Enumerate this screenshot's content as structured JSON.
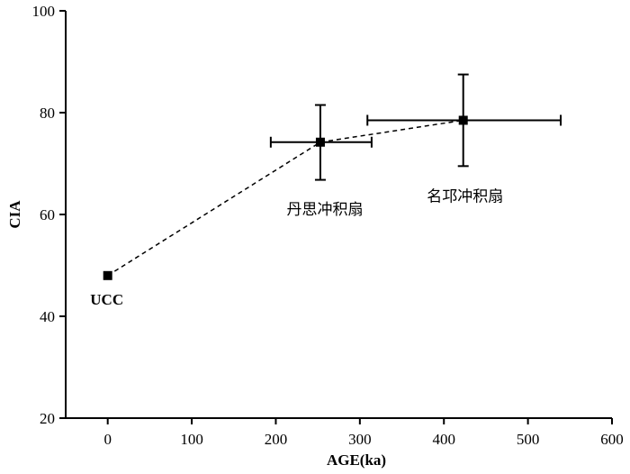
{
  "chart_data": {
    "type": "scatter",
    "xlabel": "AGE(ka)",
    "ylabel": "CIA",
    "xlim": [
      -50,
      600
    ],
    "ylim": [
      20,
      100
    ],
    "x_ticks": [
      0,
      100,
      200,
      300,
      400,
      500,
      600
    ],
    "y_ticks": [
      20,
      40,
      60,
      80,
      100
    ],
    "grid": false,
    "legend": "none",
    "connector": "dashed",
    "color": "#000000",
    "points": [
      {
        "label": "UCC",
        "x": 0,
        "y": 48,
        "x_err": null,
        "y_err": null
      },
      {
        "label": "丹思冲积扇",
        "x": 253,
        "y": 74.2,
        "x_err": [
          194,
          314
        ],
        "y_err": [
          66.8,
          81.5
        ]
      },
      {
        "label": "名邛冲积扇",
        "x": 423,
        "y": 78.5,
        "x_err": [
          309,
          539
        ],
        "y_err": [
          69.5,
          87.5
        ]
      }
    ]
  }
}
